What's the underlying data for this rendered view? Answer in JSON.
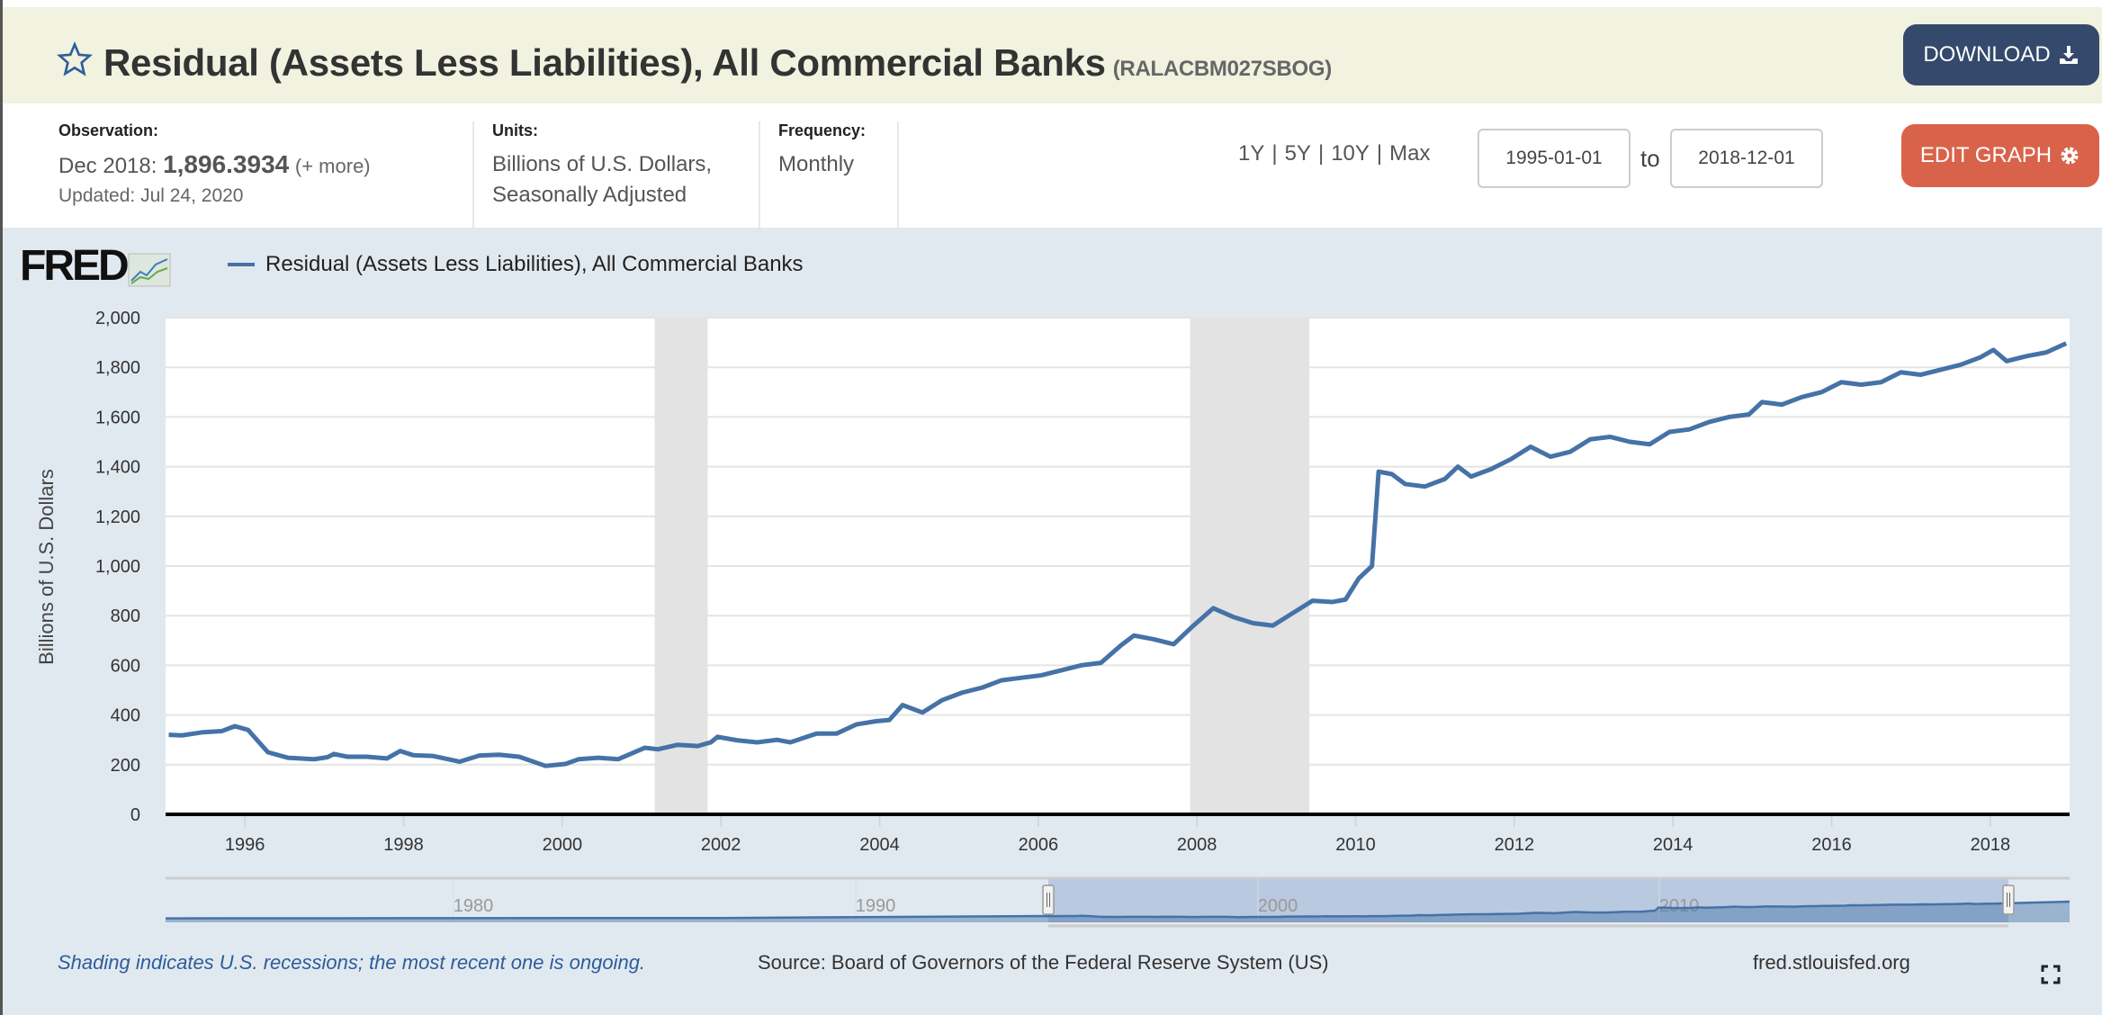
{
  "header": {
    "title": "Residual (Assets Less Liabilities), All Commercial Banks",
    "series_id": "(RALACBM027SBOG)",
    "download_label": "DOWNLOAD",
    "star_icon": "star-outline-icon",
    "download_icon": "download-icon"
  },
  "info": {
    "observation_label": "Observation:",
    "observation_date": "Dec 2018:",
    "observation_value": "1,896.3934",
    "observation_more": "(+ more)",
    "updated": "Updated: Jul 24, 2020",
    "units_label": "Units:",
    "units_line1": "Billions of U.S. Dollars,",
    "units_line2": "Seasonally Adjusted",
    "frequency_label": "Frequency:",
    "frequency_value": "Monthly"
  },
  "controls": {
    "ranges": [
      "1Y",
      "5Y",
      "10Y",
      "Max"
    ],
    "start_date": "1995-01-01",
    "to_label": "to",
    "end_date": "2018-12-01",
    "edit_label": "EDIT GRAPH",
    "gear_icon": "gear-icon"
  },
  "colors": {
    "series": "#4572a7",
    "recession": "#e3e3e3",
    "download_button": "#34496b",
    "edit_button": "#d9634a",
    "header_bg": "#f1f2df",
    "chart_bg": "#e1e9f0"
  },
  "logo": {
    "text": "FRED"
  },
  "chart_data": {
    "type": "line",
    "legend_position": "top-left",
    "grid": true,
    "ylabel": "Billions of U.S. Dollars",
    "xlim": [
      "1995-01",
      "2018-12"
    ],
    "ylim": [
      0,
      2000
    ],
    "yticks": [
      "0",
      "200",
      "400",
      "600",
      "800",
      "1,000",
      "1,200",
      "1,400",
      "1,600",
      "1,800",
      "2,000"
    ],
    "xticks": [
      "1996",
      "1998",
      "2000",
      "2002",
      "2004",
      "2006",
      "2008",
      "2010",
      "2012",
      "2014",
      "2016",
      "2018"
    ],
    "recessions": [
      [
        "2001-03",
        "2001-11"
      ],
      [
        "2007-12",
        "2009-06"
      ]
    ],
    "series": [
      {
        "name": "Residual (Assets Less Liabilities), All Commercial Banks",
        "points": [
          [
            "1995-01",
            320
          ],
          [
            "1995-03",
            318
          ],
          [
            "1995-06",
            330
          ],
          [
            "1995-09",
            335
          ],
          [
            "1995-11",
            355
          ],
          [
            "1996-01",
            340
          ],
          [
            "1996-04",
            250
          ],
          [
            "1996-07",
            228
          ],
          [
            "1996-11",
            222
          ],
          [
            "1997-01",
            230
          ],
          [
            "1997-02",
            243
          ],
          [
            "1997-04",
            232
          ],
          [
            "1997-07",
            232
          ],
          [
            "1997-10",
            225
          ],
          [
            "1997-12",
            255
          ],
          [
            "1998-02",
            238
          ],
          [
            "1998-05",
            235
          ],
          [
            "1998-09",
            212
          ],
          [
            "1998-12",
            237
          ],
          [
            "1999-03",
            240
          ],
          [
            "1999-06",
            232
          ],
          [
            "1999-10",
            195
          ],
          [
            "2000-01",
            203
          ],
          [
            "2000-03",
            222
          ],
          [
            "2000-06",
            228
          ],
          [
            "2000-09",
            222
          ],
          [
            "2001-01",
            268
          ],
          [
            "2001-03",
            262
          ],
          [
            "2001-06",
            280
          ],
          [
            "2001-09",
            275
          ],
          [
            "2001-11",
            290
          ],
          [
            "2001-12",
            312
          ],
          [
            "2002-03",
            298
          ],
          [
            "2002-06",
            290
          ],
          [
            "2002-09",
            300
          ],
          [
            "2002-11",
            290
          ],
          [
            "2003-03",
            325
          ],
          [
            "2003-06",
            325
          ],
          [
            "2003-09",
            362
          ],
          [
            "2003-12",
            375
          ],
          [
            "2004-02",
            380
          ],
          [
            "2004-04",
            440
          ],
          [
            "2004-07",
            410
          ],
          [
            "2004-10",
            460
          ],
          [
            "2005-01",
            490
          ],
          [
            "2005-04",
            510
          ],
          [
            "2005-07",
            540
          ],
          [
            "2005-10",
            550
          ],
          [
            "2006-01",
            560
          ],
          [
            "2006-04",
            580
          ],
          [
            "2006-07",
            600
          ],
          [
            "2006-10",
            610
          ],
          [
            "2007-01",
            680
          ],
          [
            "2007-03",
            720
          ],
          [
            "2007-06",
            705
          ],
          [
            "2007-09",
            685
          ],
          [
            "2007-12",
            760
          ],
          [
            "2008-03",
            830
          ],
          [
            "2008-06",
            795
          ],
          [
            "2008-09",
            770
          ],
          [
            "2008-12",
            760
          ],
          [
            "2009-03",
            810
          ],
          [
            "2009-06",
            860
          ],
          [
            "2009-09",
            855
          ],
          [
            "2009-11",
            865
          ],
          [
            "2010-01",
            950
          ],
          [
            "2010-03",
            1000
          ],
          [
            "2010-04",
            1380
          ],
          [
            "2010-06",
            1370
          ],
          [
            "2010-08",
            1330
          ],
          [
            "2010-11",
            1320
          ],
          [
            "2011-02",
            1350
          ],
          [
            "2011-04",
            1400
          ],
          [
            "2011-06",
            1360
          ],
          [
            "2011-09",
            1390
          ],
          [
            "2011-12",
            1430
          ],
          [
            "2012-03",
            1480
          ],
          [
            "2012-06",
            1440
          ],
          [
            "2012-09",
            1460
          ],
          [
            "2012-12",
            1510
          ],
          [
            "2013-03",
            1520
          ],
          [
            "2013-06",
            1500
          ],
          [
            "2013-09",
            1490
          ],
          [
            "2013-12",
            1540
          ],
          [
            "2014-03",
            1550
          ],
          [
            "2014-06",
            1580
          ],
          [
            "2014-09",
            1600
          ],
          [
            "2014-12",
            1610
          ],
          [
            "2015-02",
            1660
          ],
          [
            "2015-05",
            1650
          ],
          [
            "2015-08",
            1680
          ],
          [
            "2015-11",
            1700
          ],
          [
            "2016-02",
            1740
          ],
          [
            "2016-05",
            1730
          ],
          [
            "2016-08",
            1740
          ],
          [
            "2016-11",
            1780
          ],
          [
            "2017-02",
            1770
          ],
          [
            "2017-05",
            1790
          ],
          [
            "2017-08",
            1810
          ],
          [
            "2017-11",
            1840
          ],
          [
            "2018-01",
            1870
          ],
          [
            "2018-03",
            1825
          ],
          [
            "2018-06",
            1845
          ],
          [
            "2018-09",
            1860
          ],
          [
            "2018-12",
            1896.3934
          ]
        ]
      }
    ],
    "navigator": {
      "labels": [
        "1980",
        "1990",
        "2000",
        "2010"
      ]
    }
  },
  "footer": {
    "note": "Shading indicates U.S. recessions; the most recent one is ongoing.",
    "source": "Source: Board of Governors of the Federal Reserve System (US)",
    "site": "fred.stlouisfed.org"
  }
}
